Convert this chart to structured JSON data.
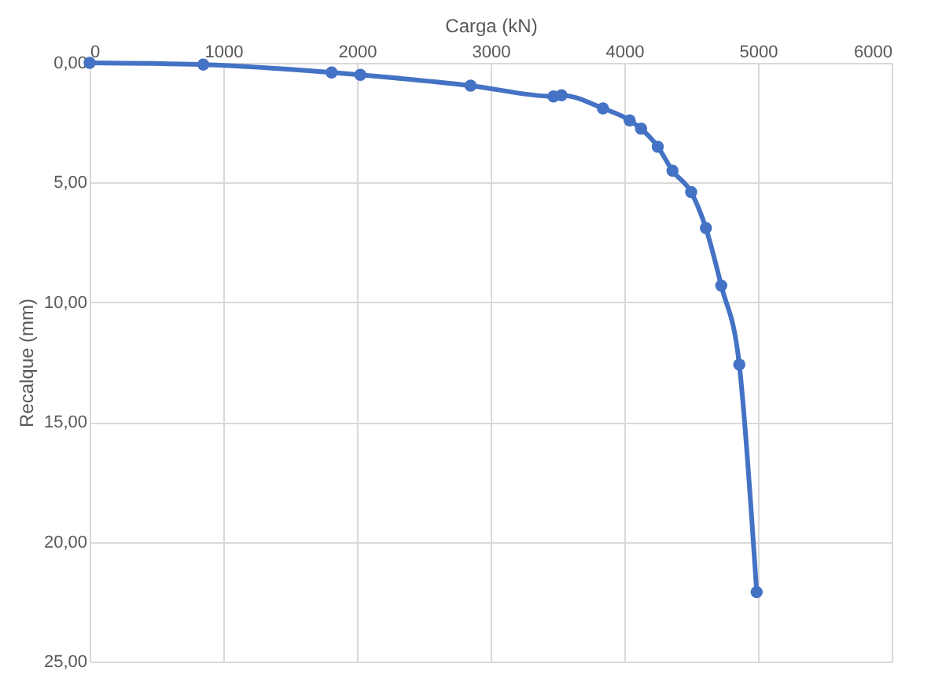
{
  "chart_data": {
    "type": "line",
    "xlabel": "Carga (kN)",
    "ylabel": "Recalque (mm)",
    "x": [
      0,
      850,
      1810,
      2025,
      2850,
      3470,
      3530,
      3840,
      4040,
      4125,
      4250,
      4360,
      4500,
      4610,
      4725,
      4860,
      4990
    ],
    "series": [
      {
        "color": "#4472c4",
        "values": [
          0,
          0.07,
          0.4,
          0.5,
          0.95,
          1.4,
          1.35,
          1.9,
          2.4,
          2.75,
          3.5,
          4.5,
          5.4,
          6.9,
          9.3,
          12.6,
          22.1
        ]
      }
    ],
    "xlim": [
      0,
      6000
    ],
    "xticks": [
      0,
      1000,
      2000,
      3000,
      4000,
      5000,
      6000
    ],
    "ylim": [
      25,
      0
    ],
    "yticks": [
      {
        "value": 0,
        "label": "0,00"
      },
      {
        "value": 5,
        "label": "5,00"
      },
      {
        "value": 10,
        "label": "10,00"
      },
      {
        "value": 15,
        "label": "15,00"
      },
      {
        "value": 20,
        "label": "20,00"
      },
      {
        "value": 25,
        "label": "25,00"
      }
    ],
    "grid": true,
    "marker": "circle",
    "line_style": "solid"
  }
}
